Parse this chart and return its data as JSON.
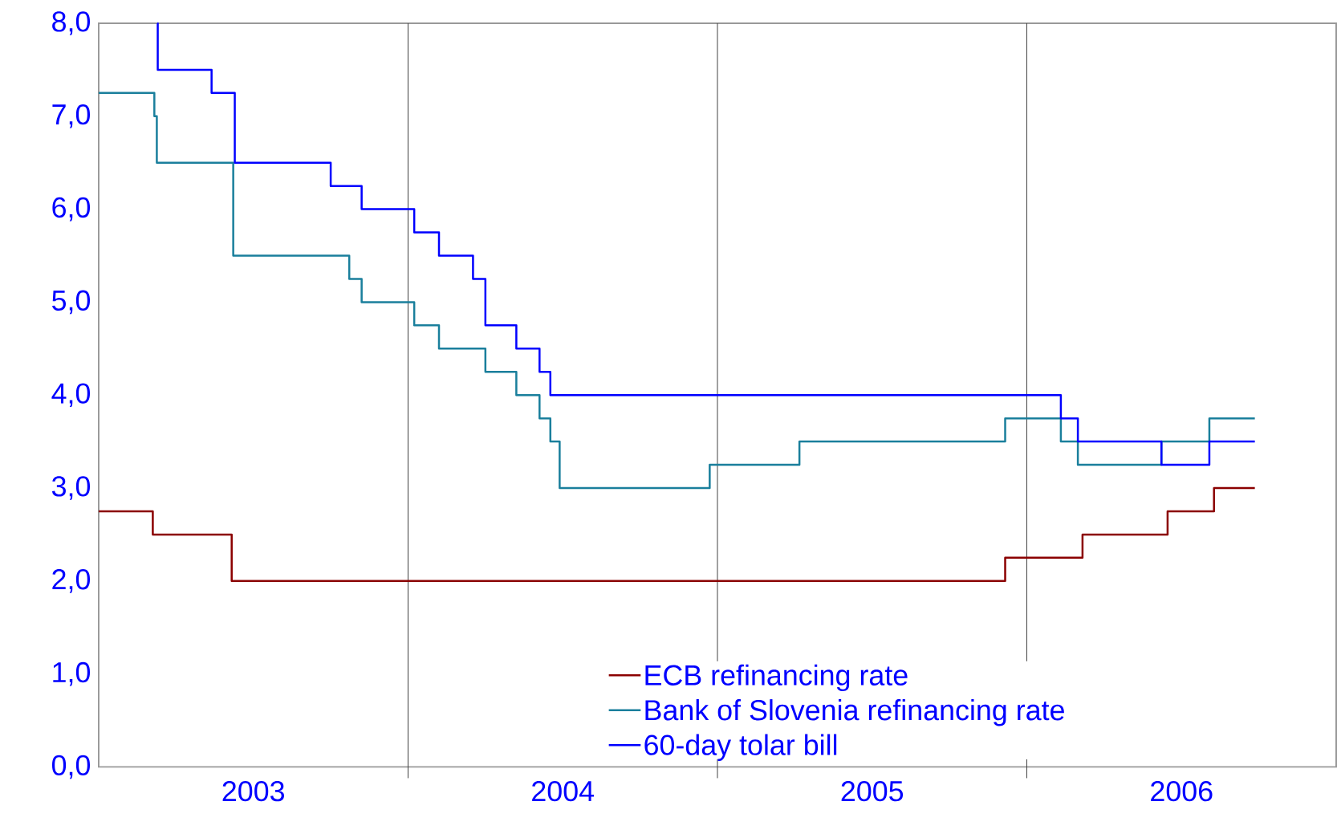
{
  "chart_data": {
    "type": "step",
    "xlim": [
      2003,
      2007
    ],
    "xticks": [
      {
        "value": 2003.5,
        "label": "2003"
      },
      {
        "value": 2004.5,
        "label": "2004"
      },
      {
        "value": 2005.5,
        "label": "2005"
      },
      {
        "value": 2006.5,
        "label": "2006"
      }
    ],
    "ylim": [
      0,
      8
    ],
    "yticks": [
      {
        "value": 0,
        "label": "0,0"
      },
      {
        "value": 1,
        "label": "1,0"
      },
      {
        "value": 2,
        "label": "2,0"
      },
      {
        "value": 3,
        "label": "3,0"
      },
      {
        "value": 4,
        "label": "4,0"
      },
      {
        "value": 5,
        "label": "5,0"
      },
      {
        "value": 6,
        "label": "6,0"
      },
      {
        "value": 7,
        "label": "7,0"
      },
      {
        "value": 8,
        "label": "8,0"
      }
    ],
    "legend": "bottom",
    "ref_lines": [
      {
        "axis": "x",
        "value": 2004,
        "color": "#404040"
      },
      {
        "axis": "x",
        "value": 2005,
        "color": "#404040"
      },
      {
        "axis": "x",
        "value": 2006,
        "color": "#404040"
      }
    ],
    "series": [
      {
        "name": "ECB refinancing rate",
        "color": "#8b0000",
        "x": [
          2003.0,
          2003.175,
          2003.43,
          2005.93,
          2006.18,
          2006.455,
          2006.605,
          2006.737
        ],
        "values": [
          2.75,
          2.5,
          2.0,
          2.25,
          2.5,
          2.75,
          3.0,
          3.0
        ]
      },
      {
        "name": "Bank of Slovenia refinancing rate",
        "color": "#1a7f9c",
        "x": [
          2003.0,
          2003.18,
          2003.188,
          2003.435,
          2003.81,
          2003.85,
          2004.02,
          2004.1,
          2004.25,
          2004.35,
          2004.425,
          2004.46,
          2004.49,
          2004.975,
          2005.265,
          2005.93,
          2006.11,
          2006.165,
          2006.435,
          2006.59,
          2006.737
        ],
        "values": [
          7.25,
          7.0,
          6.5,
          5.5,
          5.25,
          5.0,
          4.75,
          4.5,
          4.25,
          4.0,
          3.75,
          3.5,
          3.0,
          3.25,
          3.5,
          3.75,
          3.5,
          3.25,
          3.5,
          3.75,
          3.75
        ]
      },
      {
        "name": "60-day tolar bill",
        "color": "#0000ff",
        "x": [
          2003.19,
          2003.191,
          2003.365,
          2003.44,
          2003.75,
          2003.85,
          2004.02,
          2004.1,
          2004.21,
          2004.25,
          2004.35,
          2004.425,
          2004.46,
          2006.11,
          2006.165,
          2006.435,
          2006.59,
          2006.737
        ],
        "values": [
          8.0,
          7.5,
          7.25,
          6.5,
          6.25,
          6.0,
          5.75,
          5.5,
          5.25,
          4.75,
          4.5,
          4.25,
          4.0,
          3.75,
          3.5,
          3.25,
          3.5,
          3.5
        ]
      }
    ]
  }
}
